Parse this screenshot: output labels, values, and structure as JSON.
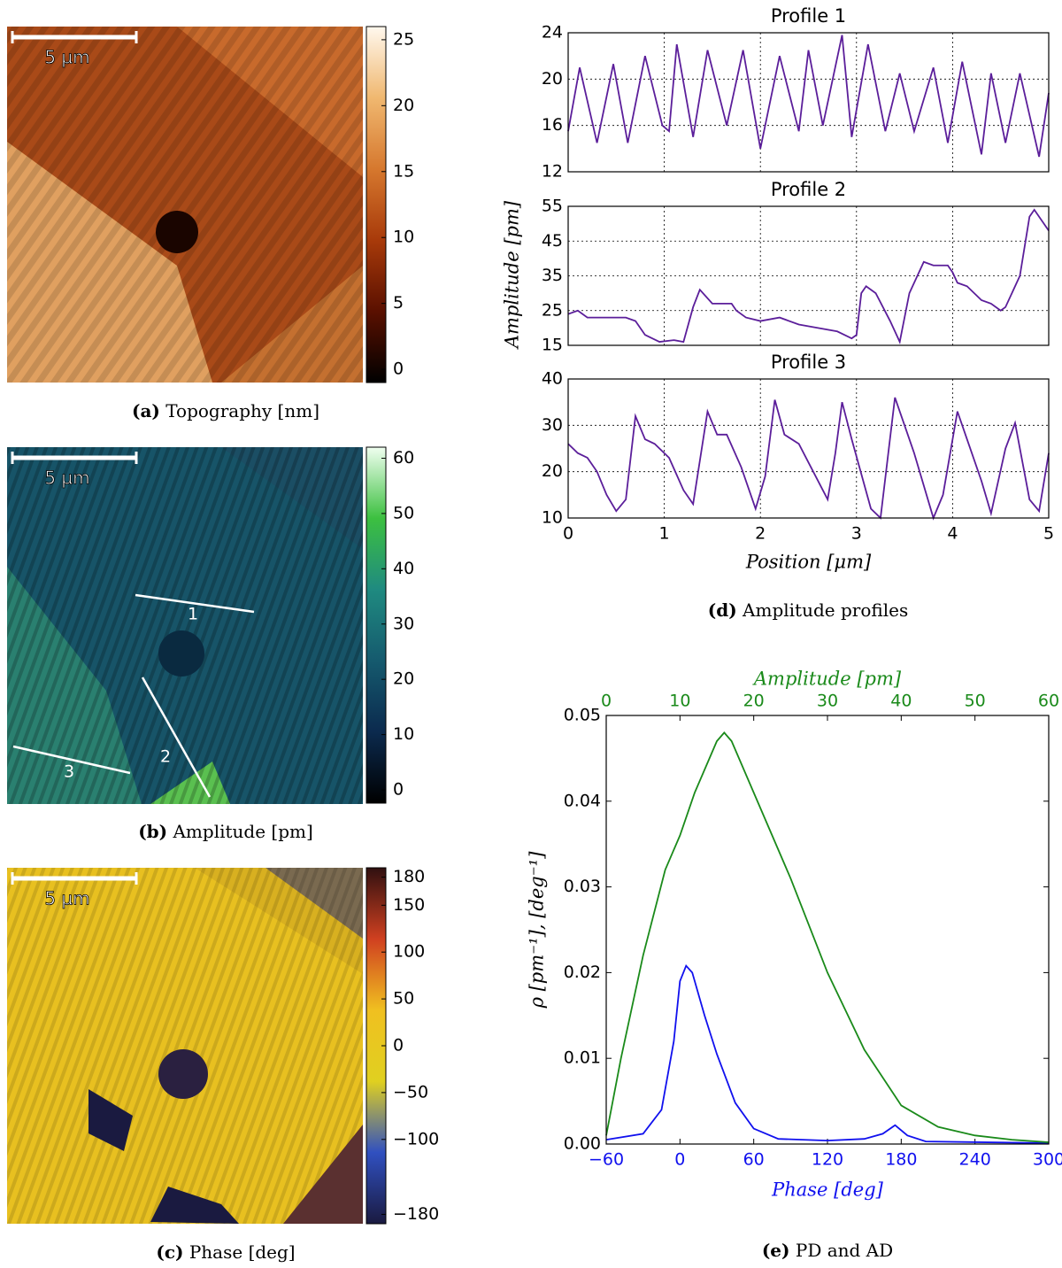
{
  "chart_data": [
    {
      "type": "image",
      "caption_label": "(a)",
      "caption": "Topography [nm]",
      "scale_bar": "5 µm",
      "colormap": [
        "#000000",
        "#5a1000",
        "#a83a0a",
        "#d6782e",
        "#f0b870",
        "#fff8ee"
      ],
      "clim": [
        -1,
        26
      ],
      "ticks": [
        0,
        5,
        10,
        15,
        20,
        25
      ]
    },
    {
      "type": "image",
      "caption_label": "(b)",
      "caption": "Amplitude [pm]",
      "scale_bar": "5 µm",
      "line_labels": [
        "1",
        "2",
        "3"
      ],
      "colormap": [
        "#000000",
        "#0b2a4e",
        "#155a6e",
        "#1f8a80",
        "#3cc040",
        "#f0fff0"
      ],
      "clim": [
        -2.4,
        62
      ],
      "ticks": [
        0,
        10,
        20,
        30,
        40,
        50,
        60
      ]
    },
    {
      "type": "image",
      "caption_label": "(c)",
      "caption": "Phase [deg]",
      "scale_bar": "5 µm",
      "colormap": [
        "#1a1a40",
        "#3050c0",
        "#e0d020",
        "#f0c020",
        "#d04020",
        "#301010"
      ],
      "clim": [
        -190,
        190
      ],
      "ticks": [
        180,
        150,
        100,
        50,
        0,
        {
          "value": -50,
          "label": "−50"
        },
        {
          "value": -100,
          "label": "−100"
        },
        {
          "value": -180,
          "label": "−180"
        }
      ]
    },
    {
      "type": "line",
      "caption_label": "(d)",
      "caption": "Amplitude profiles",
      "xlabel": "Position [μm]",
      "ylabel": "Amplitude [pm]",
      "xlim": [
        0,
        5
      ],
      "xticks": [
        0,
        1,
        2,
        3,
        4,
        5
      ],
      "grid": true,
      "subplots": [
        {
          "title": "Profile 1",
          "ylim": [
            12,
            24
          ],
          "yticks": [
            12,
            16,
            20,
            24
          ],
          "series": [
            {
              "color": "#5b1e9a",
              "x": [
                0,
                0.12,
                0.3,
                0.47,
                0.62,
                0.8,
                0.98,
                1.05,
                1.13,
                1.3,
                1.45,
                1.65,
                1.82,
                2.0,
                2.2,
                2.4,
                2.5,
                2.65,
                2.85,
                2.95,
                3.12,
                3.3,
                3.45,
                3.6,
                3.8,
                3.95,
                4.1,
                4.3,
                4.4,
                4.55,
                4.7,
                4.9,
                5
              ],
              "values": [
                15.5,
                21,
                14.5,
                21.3,
                14.5,
                22,
                16,
                15.5,
                23,
                15,
                22.5,
                16,
                22.5,
                14,
                22,
                15.5,
                22.5,
                16,
                23.8,
                15,
                23,
                15.5,
                20.5,
                15.5,
                21,
                14.5,
                21.5,
                13.5,
                20.5,
                14.5,
                20.5,
                13.3,
                18.8
              ]
            }
          ]
        },
        {
          "title": "Profile 2",
          "ylim": [
            15,
            55
          ],
          "yticks": [
            15,
            25,
            35,
            45,
            55
          ],
          "series": [
            {
              "color": "#5b1e9a",
              "x": [
                0,
                0.1,
                0.2,
                0.4,
                0.6,
                0.7,
                0.8,
                0.95,
                1.1,
                1.2,
                1.3,
                1.37,
                1.5,
                1.7,
                1.75,
                1.85,
                2.0,
                2.2,
                2.4,
                2.6,
                2.8,
                2.95,
                3.0,
                3.05,
                3.1,
                3.2,
                3.35,
                3.45,
                3.55,
                3.7,
                3.8,
                3.95,
                4.0,
                4.05,
                4.15,
                4.3,
                4.4,
                4.5,
                4.55,
                4.7,
                4.8,
                4.85,
                5
              ],
              "values": [
                24,
                25,
                23,
                23,
                23,
                22,
                18,
                16,
                16.5,
                16,
                26,
                31,
                27,
                27,
                25,
                23,
                22,
                23,
                21,
                20,
                19,
                17,
                18,
                30,
                32,
                30,
                22,
                16,
                30,
                39,
                38,
                38,
                36,
                33,
                32,
                28,
                27,
                25,
                26,
                35,
                52,
                54,
                48
              ]
            }
          ]
        },
        {
          "title": "Profile 3",
          "ylim": [
            10,
            40
          ],
          "yticks": [
            10,
            20,
            30,
            40
          ],
          "series": [
            {
              "color": "#5b1e9a",
              "x": [
                0,
                0.1,
                0.2,
                0.3,
                0.4,
                0.5,
                0.6,
                0.7,
                0.8,
                0.9,
                1.05,
                1.2,
                1.3,
                1.45,
                1.55,
                1.65,
                1.8,
                1.95,
                2.05,
                2.15,
                2.25,
                2.4,
                2.55,
                2.7,
                2.78,
                2.85,
                2.95,
                3.15,
                3.25,
                3.4,
                3.5,
                3.6,
                3.8,
                3.9,
                4.05,
                4.15,
                4.3,
                4.4,
                4.55,
                4.65,
                4.8,
                4.9,
                5
              ],
              "values": [
                26,
                24,
                23,
                20,
                15,
                11.5,
                14,
                32,
                27,
                26,
                23,
                16,
                13,
                33,
                28,
                28,
                21,
                12,
                19,
                35.5,
                28,
                26,
                20,
                14,
                24,
                35,
                27,
                12,
                10,
                36,
                30,
                24,
                10,
                15,
                33,
                27,
                18,
                11,
                25,
                30.5,
                14,
                11.5,
                24
              ]
            }
          ]
        }
      ]
    },
    {
      "type": "line",
      "caption_label": "(e)",
      "caption": "PD and AD",
      "xlabel": "Phase [deg]",
      "x2label": "Amplitude [pm]",
      "ylabel": "ρ [pm⁻¹], [deg⁻¹]",
      "xlim": [
        -60,
        300
      ],
      "xticks": [
        {
          "value": -60,
          "label": "−60"
        },
        0,
        60,
        120,
        180,
        240,
        300
      ],
      "x2lim": [
        0,
        60
      ],
      "x2ticks": [
        0,
        10,
        20,
        30,
        40,
        50,
        60
      ],
      "ylim": [
        0,
        0.05
      ],
      "yticks": [
        {
          "value": 0,
          "label": "0.00"
        },
        {
          "value": 0.01,
          "label": "0.01"
        },
        {
          "value": 0.02,
          "label": "0.02"
        },
        {
          "value": 0.03,
          "label": "0.03"
        },
        {
          "value": 0.04,
          "label": "0.04"
        },
        {
          "value": 0.05,
          "label": "0.05"
        }
      ],
      "xcolor": "#1010ee",
      "x2color": "#1a8a1a",
      "series": [
        {
          "color": "#1010ee",
          "x": [
            -60,
            -30,
            -15,
            -5,
            0,
            5,
            10,
            20,
            30,
            45,
            60,
            80,
            120,
            150,
            165,
            175,
            185,
            200,
            250,
            300
          ],
          "values": [
            0.0005,
            0.0012,
            0.004,
            0.012,
            0.019,
            0.0208,
            0.02,
            0.015,
            0.0105,
            0.0048,
            0.0018,
            0.0006,
            0.0004,
            0.0006,
            0.0012,
            0.0022,
            0.001,
            0.0003,
            0.0002,
            0.0001
          ]
        },
        {
          "color": "#1a8a1a",
          "axis": "x2",
          "x": [
            0,
            2,
            5,
            8,
            10,
            12,
            14,
            15,
            16,
            17,
            20,
            25,
            30,
            35,
            40,
            45,
            50,
            55,
            60
          ],
          "values": [
            0.001,
            0.01,
            0.022,
            0.032,
            0.036,
            0.041,
            0.045,
            0.047,
            0.048,
            0.047,
            0.041,
            0.031,
            0.02,
            0.011,
            0.0045,
            0.002,
            0.001,
            0.0005,
            0.0002
          ]
        }
      ]
    }
  ]
}
